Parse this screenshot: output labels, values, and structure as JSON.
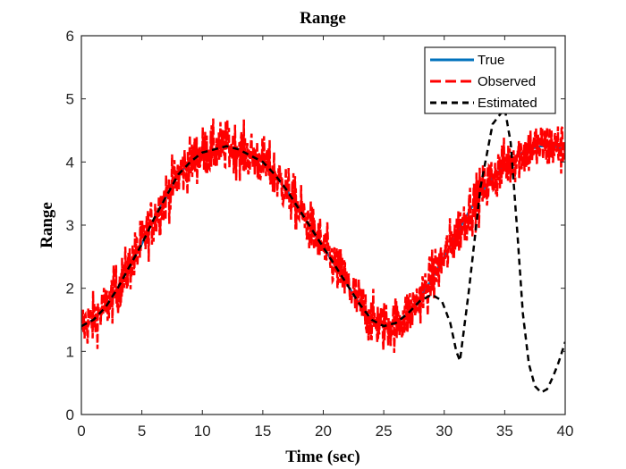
{
  "chart_data": {
    "type": "line",
    "title": "Range",
    "xlabel": "Time (sec)",
    "ylabel": "Range",
    "xlim": [
      0,
      40
    ],
    "ylim": [
      0,
      6
    ],
    "xticks": [
      "0",
      "5",
      "10",
      "15",
      "20",
      "25",
      "30",
      "35",
      "40"
    ],
    "yticks": [
      "0",
      "1",
      "2",
      "3",
      "4",
      "5",
      "6"
    ],
    "grid": false,
    "legend_position": "top-right",
    "series": [
      {
        "name": "True",
        "color": "#0072BD",
        "style": "solid",
        "x": [
          0,
          1,
          2,
          3,
          4,
          5,
          6,
          7,
          8,
          9,
          10,
          11,
          12,
          13,
          14,
          15,
          16,
          17,
          18,
          19,
          20,
          21,
          22,
          23,
          24,
          25,
          26,
          27,
          28,
          29,
          30,
          31,
          32,
          33,
          34,
          35,
          36,
          37,
          38,
          39,
          40
        ],
        "values": [
          1.4,
          1.5,
          1.7,
          2.0,
          2.35,
          2.7,
          3.1,
          3.45,
          3.8,
          4.0,
          4.15,
          4.2,
          4.25,
          4.2,
          4.1,
          4.0,
          3.8,
          3.55,
          3.25,
          2.95,
          2.65,
          2.35,
          2.05,
          1.75,
          1.5,
          1.4,
          1.45,
          1.6,
          1.85,
          2.15,
          2.5,
          2.85,
          3.2,
          3.5,
          3.75,
          3.95,
          4.1,
          4.2,
          4.25,
          4.25,
          4.2
        ]
      },
      {
        "name": "Observed",
        "color": "#FF0000",
        "style": "dashed",
        "noise_amplitude": 0.4,
        "x": [
          0,
          1,
          2,
          3,
          4,
          5,
          6,
          7,
          8,
          9,
          10,
          11,
          12,
          13,
          14,
          15,
          16,
          17,
          18,
          19,
          20,
          21,
          22,
          23,
          24,
          25,
          26,
          27,
          28,
          29,
          30,
          31,
          32,
          33,
          34,
          35,
          36,
          37,
          38,
          39,
          40
        ],
        "values": [
          1.4,
          1.5,
          1.7,
          2.0,
          2.35,
          2.7,
          3.1,
          3.45,
          3.8,
          4.0,
          4.15,
          4.2,
          4.25,
          4.2,
          4.1,
          4.0,
          3.8,
          3.55,
          3.25,
          2.95,
          2.65,
          2.35,
          2.05,
          1.75,
          1.5,
          1.4,
          1.45,
          1.6,
          1.85,
          2.15,
          2.5,
          2.85,
          3.2,
          3.5,
          3.75,
          3.95,
          4.1,
          4.2,
          4.25,
          4.25,
          4.2
        ]
      },
      {
        "name": "Estimated",
        "color": "#000000",
        "style": "dashed",
        "x": [
          0,
          1,
          2,
          3,
          4,
          5,
          6,
          7,
          8,
          9,
          10,
          11,
          12,
          13,
          14,
          15,
          16,
          17,
          18,
          19,
          20,
          21,
          22,
          23,
          24,
          25,
          26,
          27,
          28,
          29,
          29.8,
          30.5,
          31,
          31.3,
          32,
          33,
          34,
          35,
          35.5,
          36,
          36.5,
          37,
          37.5,
          38,
          38.5,
          39,
          39.5,
          40
        ],
        "values": [
          1.4,
          1.5,
          1.7,
          2.0,
          2.35,
          2.7,
          3.1,
          3.45,
          3.8,
          4.0,
          4.15,
          4.2,
          4.25,
          4.2,
          4.1,
          4.0,
          3.8,
          3.55,
          3.25,
          2.95,
          2.65,
          2.35,
          2.05,
          1.75,
          1.5,
          1.4,
          1.45,
          1.6,
          1.8,
          1.9,
          1.8,
          1.45,
          1.0,
          0.85,
          1.9,
          3.6,
          4.6,
          4.85,
          4.3,
          3.0,
          1.6,
          0.8,
          0.45,
          0.35,
          0.4,
          0.6,
          0.85,
          1.15
        ]
      }
    ]
  }
}
